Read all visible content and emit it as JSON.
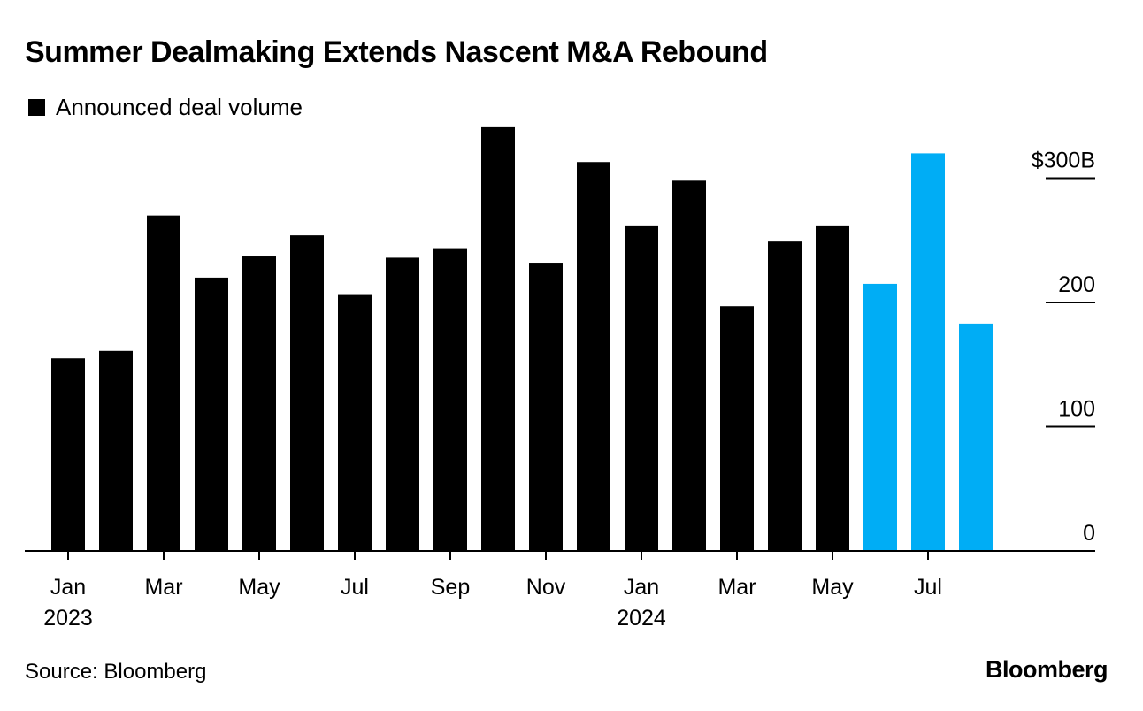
{
  "title": "Summer Dealmaking Extends Nascent M&A Rebound",
  "legend": {
    "label": "Announced deal volume",
    "color": "#000000"
  },
  "source": "Source: Bloomberg",
  "brand": "Bloomberg",
  "colors": {
    "normal": "#000000",
    "highlight": "#00adf5"
  },
  "chart_data": {
    "type": "bar",
    "title": "Summer Dealmaking Extends Nascent M&A Rebound",
    "xlabel": "",
    "ylabel": "",
    "ylim": [
      0,
      340
    ],
    "y_ticks": [
      {
        "value": 0,
        "label": "0"
      },
      {
        "value": 100,
        "label": "100"
      },
      {
        "value": 200,
        "label": "200"
      },
      {
        "value": 300,
        "label": "$300B"
      }
    ],
    "categories": [
      "Jan 2023",
      "Feb 2023",
      "Mar 2023",
      "Apr 2023",
      "May 2023",
      "Jun 2023",
      "Jul 2023",
      "Aug 2023",
      "Sep 2023",
      "Oct 2023",
      "Nov 2023",
      "Dec 2023",
      "Jan 2024",
      "Feb 2024",
      "Mar 2024",
      "Apr 2024",
      "May 2024",
      "Jun 2024",
      "Jul 2024",
      "Aug 2024"
    ],
    "values": [
      155,
      161,
      270,
      220,
      237,
      254,
      206,
      236,
      243,
      341,
      232,
      313,
      262,
      298,
      197,
      249,
      262,
      215,
      320,
      183
    ],
    "highlighted": [
      false,
      false,
      false,
      false,
      false,
      false,
      false,
      false,
      false,
      false,
      false,
      false,
      false,
      false,
      false,
      false,
      false,
      true,
      true,
      true
    ],
    "x_tick_labels": [
      {
        "index": 0,
        "label": "Jan",
        "sublabel": "2023"
      },
      {
        "index": 2,
        "label": "Mar",
        "sublabel": ""
      },
      {
        "index": 4,
        "label": "May",
        "sublabel": ""
      },
      {
        "index": 6,
        "label": "Jul",
        "sublabel": ""
      },
      {
        "index": 8,
        "label": "Sep",
        "sublabel": ""
      },
      {
        "index": 10,
        "label": "Nov",
        "sublabel": ""
      },
      {
        "index": 12,
        "label": "Jan",
        "sublabel": "2024"
      },
      {
        "index": 14,
        "label": "Mar",
        "sublabel": ""
      },
      {
        "index": 16,
        "label": "May",
        "sublabel": ""
      },
      {
        "index": 18,
        "label": "Jul",
        "sublabel": ""
      }
    ]
  }
}
